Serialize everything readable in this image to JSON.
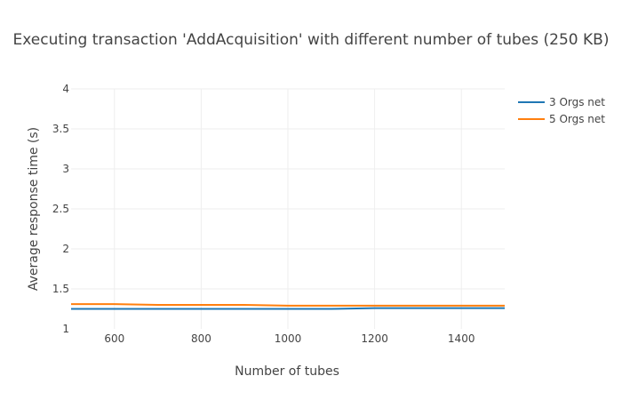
{
  "chart_data": {
    "type": "line",
    "title": "Executing transaction 'AddAcquisition' with different number of tubes (250 KB)",
    "xlabel": "Number of tubes",
    "ylabel": "Average response time (s)",
    "xlim": [
      500,
      1500
    ],
    "ylim": [
      1,
      4
    ],
    "x_ticks": [
      "600",
      "800",
      "1000",
      "1200",
      "1400"
    ],
    "y_ticks": [
      "1",
      "1.5",
      "2",
      "2.5",
      "3",
      "3.5",
      "4"
    ],
    "grid": true,
    "legend_position": "top-right",
    "x": [
      500,
      600,
      700,
      800,
      900,
      1000,
      1100,
      1200,
      1300,
      1400,
      1500
    ],
    "series": [
      {
        "name": "3 Orgs net",
        "color": "#1f77b4",
        "values": [
          1.25,
          1.25,
          1.25,
          1.25,
          1.25,
          1.25,
          1.25,
          1.26,
          1.26,
          1.26,
          1.26
        ]
      },
      {
        "name": "5 Orgs net",
        "color": "#ff7f0e",
        "values": [
          1.31,
          1.31,
          1.3,
          1.3,
          1.3,
          1.29,
          1.29,
          1.29,
          1.29,
          1.29,
          1.29
        ]
      }
    ]
  }
}
